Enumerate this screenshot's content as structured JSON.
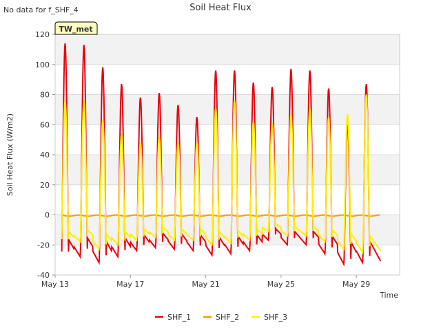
{
  "no_data_note": "No data for f_SHF_4",
  "site_badge": "TW_met",
  "chart_data": {
    "type": "line",
    "title": "Soil Heat Flux",
    "xlabel": "Time",
    "ylabel": "Soil Heat Flux (W/m2)",
    "ylim": [
      -40,
      120
    ],
    "y_ticks": [
      -40,
      -20,
      0,
      20,
      40,
      60,
      80,
      100,
      120
    ],
    "x_range_days": [
      0,
      18.3
    ],
    "x_ticks": [
      {
        "day": 0,
        "label": "May 13"
      },
      {
        "day": 4,
        "label": "May 17"
      },
      {
        "day": 8,
        "label": "May 21"
      },
      {
        "day": 12,
        "label": "May 25"
      },
      {
        "day": 16,
        "label": "May 29"
      }
    ],
    "x_start_day": 0.35,
    "x_end_day": 17.3,
    "series": [
      {
        "name": "SHF_1",
        "color": "#e8000b",
        "daily_peak": [
          114,
          113,
          98,
          87,
          78,
          81,
          73,
          65,
          96,
          96,
          88,
          85,
          97,
          96,
          84,
          60,
          87
        ],
        "daily_min": [
          -30,
          -28,
          -32,
          -28,
          -24,
          -22,
          -23,
          -24,
          -27,
          -26,
          -24,
          -17,
          -20,
          -20,
          -26,
          -33,
          -32
        ]
      },
      {
        "name": "SHF_2",
        "color": "#ff9900",
        "daily_peak": [
          0,
          0,
          0,
          0,
          0,
          0,
          0,
          0,
          0,
          0,
          0,
          0,
          0,
          0,
          0,
          0,
          0
        ],
        "daily_min": [
          -1,
          -1,
          -1,
          -1,
          -1,
          -1,
          -1,
          -1,
          -1,
          -1,
          -1,
          -1,
          -1,
          -1,
          -1,
          -1,
          -1
        ]
      },
      {
        "name": "SHF_3",
        "color": "#ffee00",
        "daily_peak": [
          76,
          76,
          63,
          54,
          48,
          52,
          48,
          48,
          71,
          76,
          62,
          61,
          67,
          71,
          65,
          67,
          80
        ],
        "daily_min": [
          -20,
          -18,
          -23,
          -20,
          -17,
          -15,
          -17,
          -17,
          -20,
          -19,
          -17,
          -11,
          -14,
          -14,
          -18,
          -23,
          -25
        ]
      }
    ],
    "legend": [
      "SHF_1",
      "SHF_2",
      "SHF_3"
    ],
    "legend_position": "bottom-center",
    "grid": true
  }
}
